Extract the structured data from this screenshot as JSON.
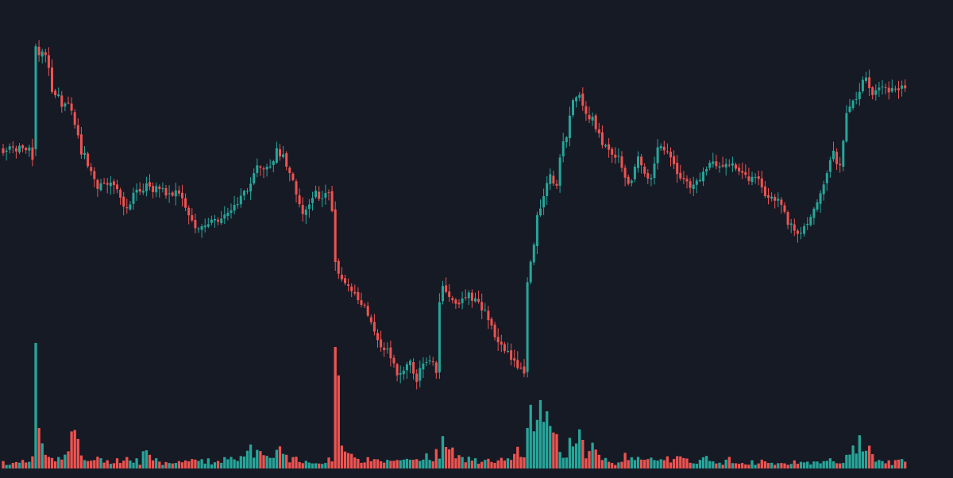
{
  "chart_data": {
    "type": "candlestick",
    "title": "",
    "xlabel": "",
    "ylabel": "",
    "grid": false,
    "legend": "none",
    "colors": {
      "background": "#161a25",
      "up": "#26a69a",
      "down": "#ef5350"
    },
    "price_range": [
      0,
      100
    ],
    "volume_range": [
      0,
      100
    ],
    "keypoints": [
      [
        0,
        45,
        3
      ],
      [
        8,
        45,
        3
      ],
      [
        9,
        40,
        6
      ],
      [
        10,
        86,
        62
      ],
      [
        11,
        83,
        20
      ],
      [
        13,
        84,
        8
      ],
      [
        15,
        68,
        5
      ],
      [
        17,
        68,
        5
      ],
      [
        18,
        62,
        4
      ],
      [
        20,
        63,
        7
      ],
      [
        22,
        55,
        19
      ],
      [
        24,
        43,
        9
      ],
      [
        25,
        43,
        3
      ],
      [
        27,
        36,
        3
      ],
      [
        29,
        29,
        4
      ],
      [
        31,
        31,
        4
      ],
      [
        33,
        31,
        3
      ],
      [
        35,
        28,
        4
      ],
      [
        37,
        22,
        3
      ],
      [
        38,
        21,
        4
      ],
      [
        40,
        28,
        5
      ],
      [
        42,
        29,
        3
      ],
      [
        44,
        30,
        9
      ],
      [
        46,
        28,
        4
      ],
      [
        48,
        30,
        3
      ],
      [
        50,
        28,
        3
      ],
      [
        52,
        28,
        3
      ],
      [
        54,
        26,
        4
      ],
      [
        56,
        22,
        3
      ],
      [
        58,
        16,
        4
      ],
      [
        60,
        13,
        3
      ],
      [
        62,
        15,
        4
      ],
      [
        64,
        17,
        3
      ],
      [
        66,
        16,
        3
      ],
      [
        68,
        18,
        4
      ],
      [
        70,
        21,
        4
      ],
      [
        72,
        23,
        3
      ],
      [
        75,
        29,
        9
      ],
      [
        78,
        38,
        8
      ],
      [
        80,
        36,
        5
      ],
      [
        82,
        39,
        4
      ],
      [
        84,
        44,
        7
      ],
      [
        86,
        43,
        9
      ],
      [
        88,
        35,
        5
      ],
      [
        90,
        28,
        4
      ],
      [
        92,
        20,
        3
      ],
      [
        94,
        24,
        4
      ],
      [
        96,
        27,
        3
      ],
      [
        98,
        26,
        3
      ],
      [
        100,
        27,
        4
      ],
      [
        101,
        21,
        5
      ],
      [
        102,
        0,
        60
      ],
      [
        104,
        -7,
        8
      ],
      [
        106,
        -9,
        6
      ],
      [
        108,
        -12,
        5
      ],
      [
        110,
        -16,
        4
      ],
      [
        112,
        -21,
        4
      ],
      [
        115,
        -31,
        5
      ],
      [
        117,
        -34,
        4
      ],
      [
        119,
        -38,
        3
      ],
      [
        121,
        -45,
        5
      ],
      [
        123,
        -42,
        4
      ],
      [
        125,
        -40,
        3
      ],
      [
        127,
        -47,
        6
      ],
      [
        129,
        -40,
        6
      ],
      [
        131,
        -38,
        5
      ],
      [
        133,
        -44,
        7
      ],
      [
        134,
        -16,
        5
      ],
      [
        135,
        -11,
        16
      ],
      [
        137,
        -14,
        9
      ],
      [
        139,
        -17,
        6
      ],
      [
        141,
        -14,
        4
      ],
      [
        143,
        -13,
        5
      ],
      [
        145,
        -15,
        4
      ],
      [
        147,
        -18,
        4
      ],
      [
        149,
        -22,
        5
      ],
      [
        151,
        -29,
        3
      ],
      [
        153,
        -33,
        4
      ],
      [
        156,
        -38,
        6
      ],
      [
        160,
        -44,
        9
      ],
      [
        161,
        -9,
        25
      ],
      [
        162,
        -1,
        26
      ],
      [
        164,
        18,
        24
      ],
      [
        166,
        26,
        23
      ],
      [
        168,
        34,
        21
      ],
      [
        170,
        30,
        13
      ],
      [
        171,
        43,
        8
      ],
      [
        173,
        50,
        7
      ],
      [
        175,
        64,
        18
      ],
      [
        177,
        66,
        14
      ],
      [
        179,
        58,
        6
      ],
      [
        181,
        58,
        9
      ],
      [
        183,
        50,
        5
      ],
      [
        185,
        46,
        5
      ],
      [
        187,
        44,
        3
      ],
      [
        189,
        41,
        3
      ],
      [
        191,
        33,
        6
      ],
      [
        193,
        32,
        4
      ],
      [
        195,
        42,
        4
      ],
      [
        197,
        35,
        3
      ],
      [
        199,
        33,
        4
      ],
      [
        201,
        45,
        4
      ],
      [
        203,
        46,
        4
      ],
      [
        205,
        42,
        5
      ],
      [
        207,
        35,
        7
      ],
      [
        209,
        34,
        4
      ],
      [
        211,
        31,
        3
      ],
      [
        213,
        31,
        4
      ],
      [
        215,
        37,
        4
      ],
      [
        217,
        40,
        5
      ],
      [
        219,
        38,
        3
      ],
      [
        221,
        37,
        3
      ],
      [
        223,
        39,
        4
      ],
      [
        225,
        37,
        3
      ],
      [
        227,
        36,
        3
      ],
      [
        229,
        32,
        3
      ],
      [
        231,
        35,
        3
      ],
      [
        233,
        29,
        4
      ],
      [
        235,
        26,
        3
      ],
      [
        237,
        26,
        3
      ],
      [
        239,
        22,
        4
      ],
      [
        241,
        16,
        3
      ],
      [
        243,
        13,
        4
      ],
      [
        245,
        12,
        3
      ],
      [
        247,
        14,
        3
      ],
      [
        249,
        21,
        3
      ],
      [
        251,
        28,
        4
      ],
      [
        253,
        37,
        4
      ],
      [
        255,
        43,
        3
      ],
      [
        257,
        37,
        3
      ],
      [
        259,
        58,
        6
      ],
      [
        261,
        63,
        8
      ],
      [
        263,
        68,
        12
      ],
      [
        265,
        75,
        10
      ],
      [
        267,
        66,
        6
      ],
      [
        269,
        69,
        5
      ],
      [
        271,
        69,
        4
      ],
      [
        273,
        68,
        3
      ],
      [
        275,
        69,
        4
      ],
      [
        277,
        69,
        6
      ]
    ]
  }
}
